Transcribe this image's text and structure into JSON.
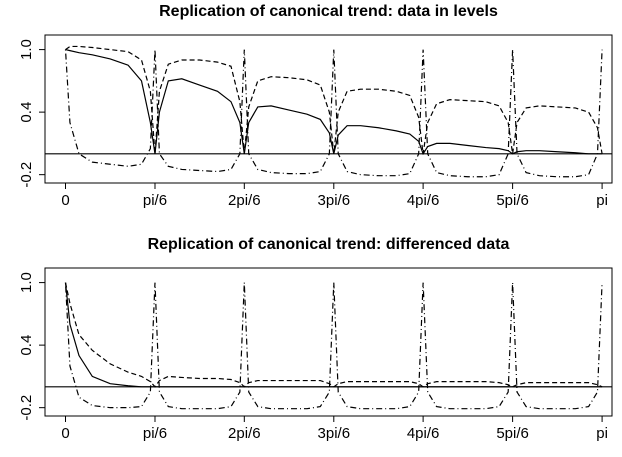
{
  "chart_data": [
    {
      "type": "line",
      "title": "Replication of canonical trend: data in levels",
      "x": [
        0,
        0.026,
        0.079,
        0.157,
        0.262,
        0.367,
        0.445,
        0.497,
        0.524,
        0.55,
        0.602,
        0.681,
        0.785,
        0.89,
        0.969,
        1.021,
        1.047,
        1.073,
        1.126,
        1.204,
        1.309,
        1.414,
        1.492,
        1.545,
        1.571,
        1.597,
        1.649,
        1.728,
        1.833,
        1.937,
        2.016,
        2.068,
        2.094,
        2.121,
        2.173,
        2.251,
        2.356,
        2.461,
        2.539,
        2.592,
        2.618,
        2.644,
        2.697,
        2.775,
        2.88,
        2.985,
        3.063,
        3.115,
        3.142
      ],
      "series": [
        {
          "color": "#000000",
          "dash": "solid",
          "values": [
            1.0,
            0.99,
            0.97,
            0.95,
            0.91,
            0.85,
            0.7,
            0.3,
            0.0,
            0.4,
            0.7,
            0.72,
            0.66,
            0.6,
            0.5,
            0.3,
            0.0,
            0.3,
            0.45,
            0.46,
            0.42,
            0.38,
            0.33,
            0.2,
            0.0,
            0.18,
            0.27,
            0.27,
            0.25,
            0.22,
            0.19,
            0.12,
            0.0,
            0.07,
            0.1,
            0.1,
            0.08,
            0.06,
            0.05,
            0.03,
            0.0,
            0.02,
            0.03,
            0.03,
            0.02,
            0.01,
            0.0,
            0.0,
            0.0
          ]
        },
        {
          "color": "#000000",
          "dash": "dashed",
          "values": [
            1.0,
            1.03,
            1.03,
            1.02,
            1.0,
            0.98,
            0.9,
            0.6,
            0.0,
            0.6,
            0.86,
            0.9,
            0.9,
            0.88,
            0.84,
            0.5,
            0.0,
            0.45,
            0.7,
            0.74,
            0.73,
            0.71,
            0.66,
            0.4,
            0.0,
            0.4,
            0.6,
            0.62,
            0.62,
            0.6,
            0.56,
            0.35,
            0.0,
            0.3,
            0.48,
            0.52,
            0.51,
            0.5,
            0.46,
            0.3,
            0.0,
            0.3,
            0.44,
            0.46,
            0.45,
            0.44,
            0.4,
            0.25,
            0.0
          ]
        },
        {
          "color": "#000000",
          "dash": "dotdash",
          "values": [
            1.0,
            0.3,
            0.0,
            -0.08,
            -0.1,
            -0.12,
            -0.1,
            0.05,
            1.0,
            0.0,
            -0.12,
            -0.15,
            -0.16,
            -0.17,
            -0.15,
            0.0,
            1.0,
            0.0,
            -0.15,
            -0.18,
            -0.19,
            -0.19,
            -0.17,
            0.0,
            1.0,
            0.0,
            -0.17,
            -0.2,
            -0.21,
            -0.21,
            -0.19,
            0.0,
            1.0,
            0.0,
            -0.18,
            -0.21,
            -0.22,
            -0.22,
            -0.2,
            0.0,
            1.0,
            0.0,
            -0.18,
            -0.21,
            -0.22,
            -0.22,
            -0.2,
            0.0,
            1.0
          ]
        }
      ],
      "hline": 0,
      "xlim": [
        -0.12,
        3.2
      ],
      "ylim": [
        -0.28,
        1.14
      ],
      "xticks": [
        0,
        {
          "value": 0.524,
          "label": "pi/6"
        },
        {
          "value": 1.047,
          "label": "2pi/6"
        },
        {
          "value": 1.571,
          "label": "3pi/6"
        },
        {
          "value": 2.094,
          "label": "4pi/6"
        },
        {
          "value": 2.618,
          "label": "5pi/6"
        },
        {
          "value": 3.142,
          "label": "pi"
        }
      ],
      "yticks": [
        -0.2,
        0.4,
        {
          "value": 1.0,
          "label": "1.0"
        }
      ]
    },
    {
      "type": "line",
      "title": "Replication of canonical trend: differenced data",
      "x": [
        0,
        0.026,
        0.079,
        0.157,
        0.262,
        0.367,
        0.445,
        0.497,
        0.524,
        0.55,
        0.602,
        0.681,
        0.785,
        0.89,
        0.969,
        1.021,
        1.047,
        1.073,
        1.126,
        1.204,
        1.309,
        1.414,
        1.492,
        1.545,
        1.571,
        1.597,
        1.649,
        1.728,
        1.833,
        1.937,
        2.016,
        2.068,
        2.094,
        2.121,
        2.173,
        2.251,
        2.356,
        2.461,
        2.539,
        2.592,
        2.618,
        2.644,
        2.697,
        2.775,
        2.88,
        2.985,
        3.063,
        3.115,
        3.142
      ],
      "series": [
        {
          "color": "#000000",
          "dash": "solid",
          "values": [
            1.0,
            0.6,
            0.3,
            0.1,
            0.03,
            0.01,
            0.0,
            0.0,
            0.0,
            0.0,
            0.0,
            0.0,
            0.0,
            0.0,
            0.0,
            0.0,
            0.0,
            0.0,
            0.0,
            0.0,
            0.0,
            0.0,
            0.0,
            0.0,
            0.0,
            0.0,
            0.0,
            0.0,
            0.0,
            0.0,
            0.0,
            0.0,
            0.0,
            0.0,
            0.0,
            0.0,
            0.0,
            0.0,
            0.0,
            0.0,
            0.0,
            0.0,
            0.0,
            0.0,
            0.0,
            0.0,
            0.0,
            0.0,
            0.0
          ]
        },
        {
          "color": "#000000",
          "dash": "dashed",
          "values": [
            1.0,
            0.8,
            0.5,
            0.35,
            0.22,
            0.14,
            0.1,
            0.05,
            0.0,
            0.06,
            0.1,
            0.09,
            0.08,
            0.08,
            0.07,
            0.04,
            0.0,
            0.04,
            0.06,
            0.06,
            0.06,
            0.06,
            0.06,
            0.03,
            0.0,
            0.03,
            0.05,
            0.05,
            0.05,
            0.05,
            0.05,
            0.03,
            0.0,
            0.03,
            0.05,
            0.05,
            0.05,
            0.05,
            0.04,
            0.02,
            0.0,
            0.02,
            0.04,
            0.04,
            0.04,
            0.04,
            0.04,
            0.02,
            0.0
          ]
        },
        {
          "color": "#000000",
          "dash": "dotdash",
          "values": [
            1.0,
            0.2,
            -0.1,
            -0.18,
            -0.2,
            -0.2,
            -0.19,
            -0.05,
            1.0,
            -0.05,
            -0.19,
            -0.21,
            -0.21,
            -0.21,
            -0.19,
            -0.05,
            1.0,
            -0.05,
            -0.19,
            -0.21,
            -0.21,
            -0.21,
            -0.19,
            -0.05,
            1.0,
            -0.05,
            -0.19,
            -0.21,
            -0.21,
            -0.21,
            -0.19,
            -0.05,
            1.0,
            -0.05,
            -0.19,
            -0.21,
            -0.21,
            -0.21,
            -0.19,
            -0.05,
            1.0,
            -0.05,
            -0.19,
            -0.21,
            -0.21,
            -0.21,
            -0.19,
            -0.05,
            1.0
          ]
        }
      ],
      "hline": 0,
      "xlim": [
        -0.12,
        3.2
      ],
      "ylim": [
        -0.28,
        1.14
      ],
      "xticks": [
        0,
        {
          "value": 0.524,
          "label": "pi/6"
        },
        {
          "value": 1.047,
          "label": "2pi/6"
        },
        {
          "value": 1.571,
          "label": "3pi/6"
        },
        {
          "value": 2.094,
          "label": "4pi/6"
        },
        {
          "value": 2.618,
          "label": "5pi/6"
        },
        {
          "value": 3.142,
          "label": "pi"
        }
      ],
      "yticks": [
        -0.2,
        0.4,
        {
          "value": 1.0,
          "label": "1.0"
        }
      ]
    }
  ]
}
